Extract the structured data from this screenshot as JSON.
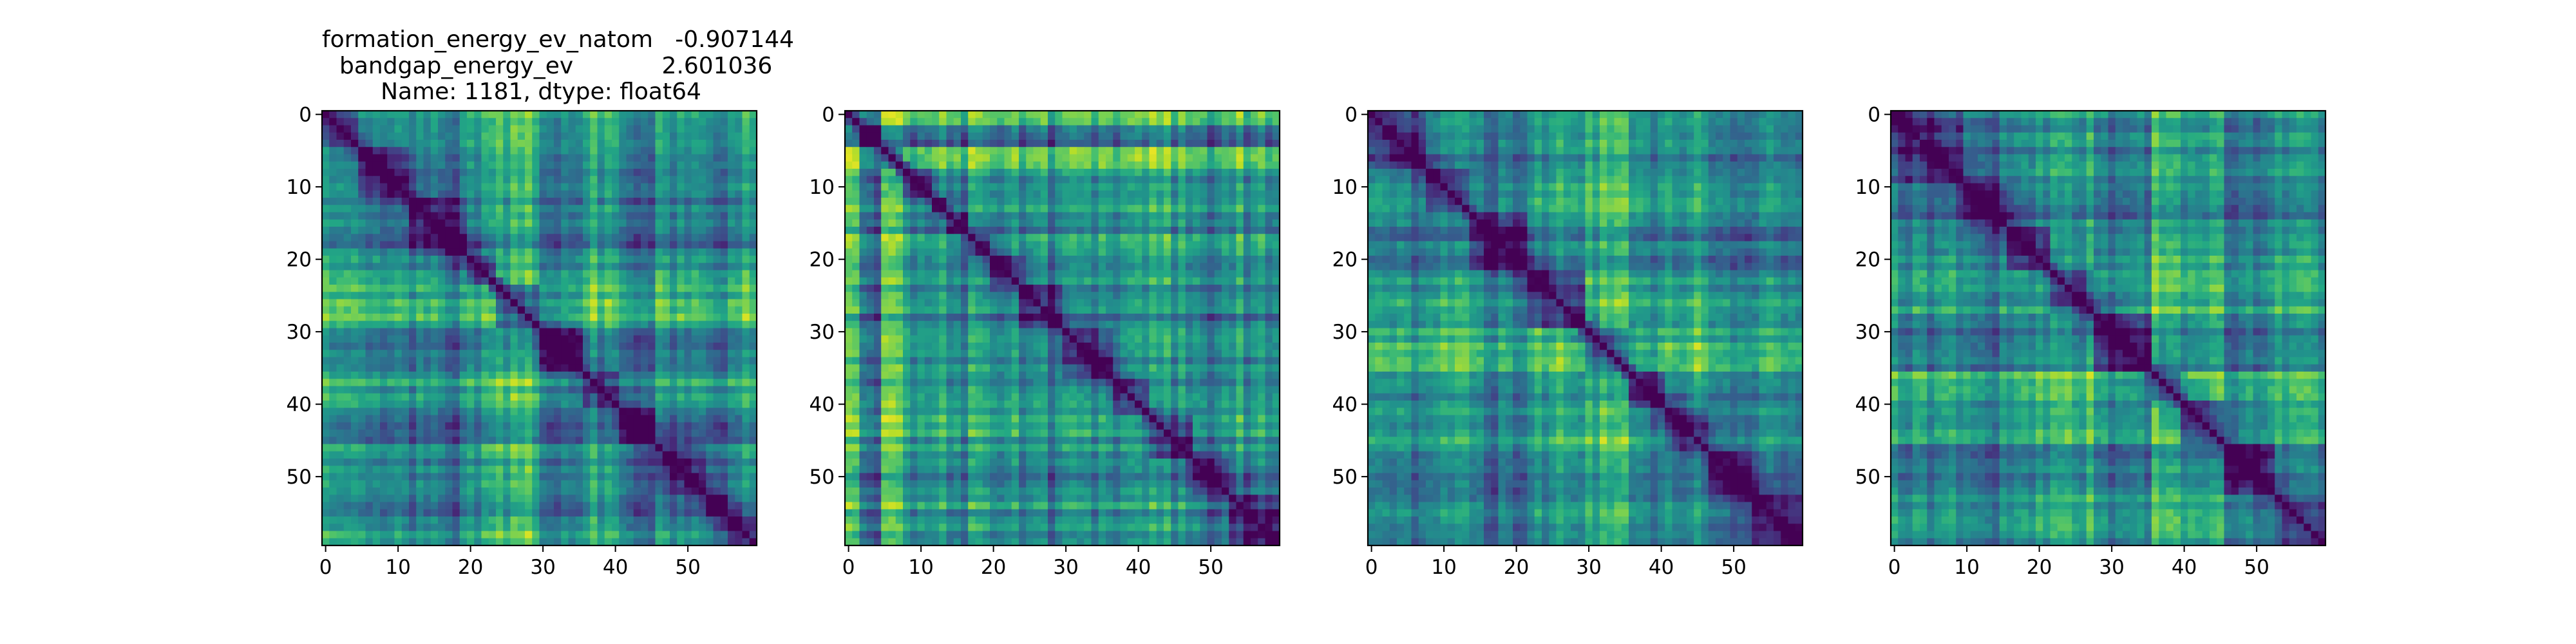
{
  "figure": {
    "title_lines": [
      "formation_energy_ev_natom   -0.907144",
      "bandgap_energy_ev            2.601036",
      "Name: 1181, dtype: float64"
    ]
  },
  "chart_data": [
    {
      "type": "heatmap",
      "panel": 1,
      "size": 60,
      "colormap": "viridis",
      "xlim": [
        0,
        59
      ],
      "ylim": [
        59,
        0
      ],
      "x_ticks": [
        "0",
        "10",
        "20",
        "30",
        "40",
        "50"
      ],
      "y_ticks": [
        "0",
        "10",
        "20",
        "30",
        "40",
        "50"
      ],
      "diagonal": "minimum",
      "block_boundaries": [
        5,
        12,
        20,
        24,
        30,
        36,
        41,
        46,
        53,
        56
      ],
      "block_levels": [
        0.62,
        0.45,
        0.3,
        0.55,
        0.85,
        0.4,
        0.7,
        0.28,
        0.5,
        0.35,
        0.6
      ],
      "noise": 0.22
    },
    {
      "type": "heatmap",
      "panel": 2,
      "size": 60,
      "colormap": "viridis",
      "xlim": [
        0,
        59
      ],
      "ylim": [
        59,
        0
      ],
      "x_ticks": [
        "0",
        "10",
        "20",
        "30",
        "40",
        "50"
      ],
      "y_ticks": [
        "0",
        "10",
        "20",
        "30",
        "40",
        "50"
      ],
      "diagonal": "minimum",
      "block_boundaries": [
        2,
        5,
        8,
        12,
        14,
        17,
        20,
        24,
        30,
        37,
        42,
        48,
        53
      ],
      "block_levels": [
        0.85,
        0.2,
        0.9,
        0.45,
        0.8,
        0.25,
        0.7,
        0.5,
        0.35,
        0.55,
        0.4,
        0.6,
        0.3,
        0.5
      ],
      "noise": 0.28
    },
    {
      "type": "heatmap",
      "panel": 3,
      "size": 60,
      "colormap": "viridis",
      "xlim": [
        0,
        59
      ],
      "ylim": [
        59,
        0
      ],
      "x_ticks": [
        "0",
        "10",
        "20",
        "30",
        "40",
        "50"
      ],
      "y_ticks": [
        "0",
        "10",
        "20",
        "30",
        "40",
        "50"
      ],
      "diagonal": "minimum",
      "block_boundaries": [
        8,
        14,
        22,
        30,
        36,
        41,
        47,
        53
      ],
      "block_levels": [
        0.35,
        0.55,
        0.3,
        0.65,
        0.8,
        0.45,
        0.6,
        0.3,
        0.4
      ],
      "noise": 0.2
    },
    {
      "type": "heatmap",
      "panel": 4,
      "size": 60,
      "colormap": "viridis",
      "xlim": [
        0,
        59
      ],
      "ylim": [
        59,
        0
      ],
      "x_ticks": [
        "0",
        "10",
        "20",
        "30",
        "40",
        "50"
      ],
      "y_ticks": [
        "0",
        "10",
        "20",
        "30",
        "40",
        "50"
      ],
      "diagonal": "minimum",
      "block_boundaries": [
        10,
        16,
        22,
        28,
        36,
        40,
        46,
        53
      ],
      "block_levels": [
        0.45,
        0.3,
        0.55,
        0.7,
        0.4,
        0.85,
        0.6,
        0.35,
        0.5
      ],
      "noise": 0.22
    }
  ]
}
